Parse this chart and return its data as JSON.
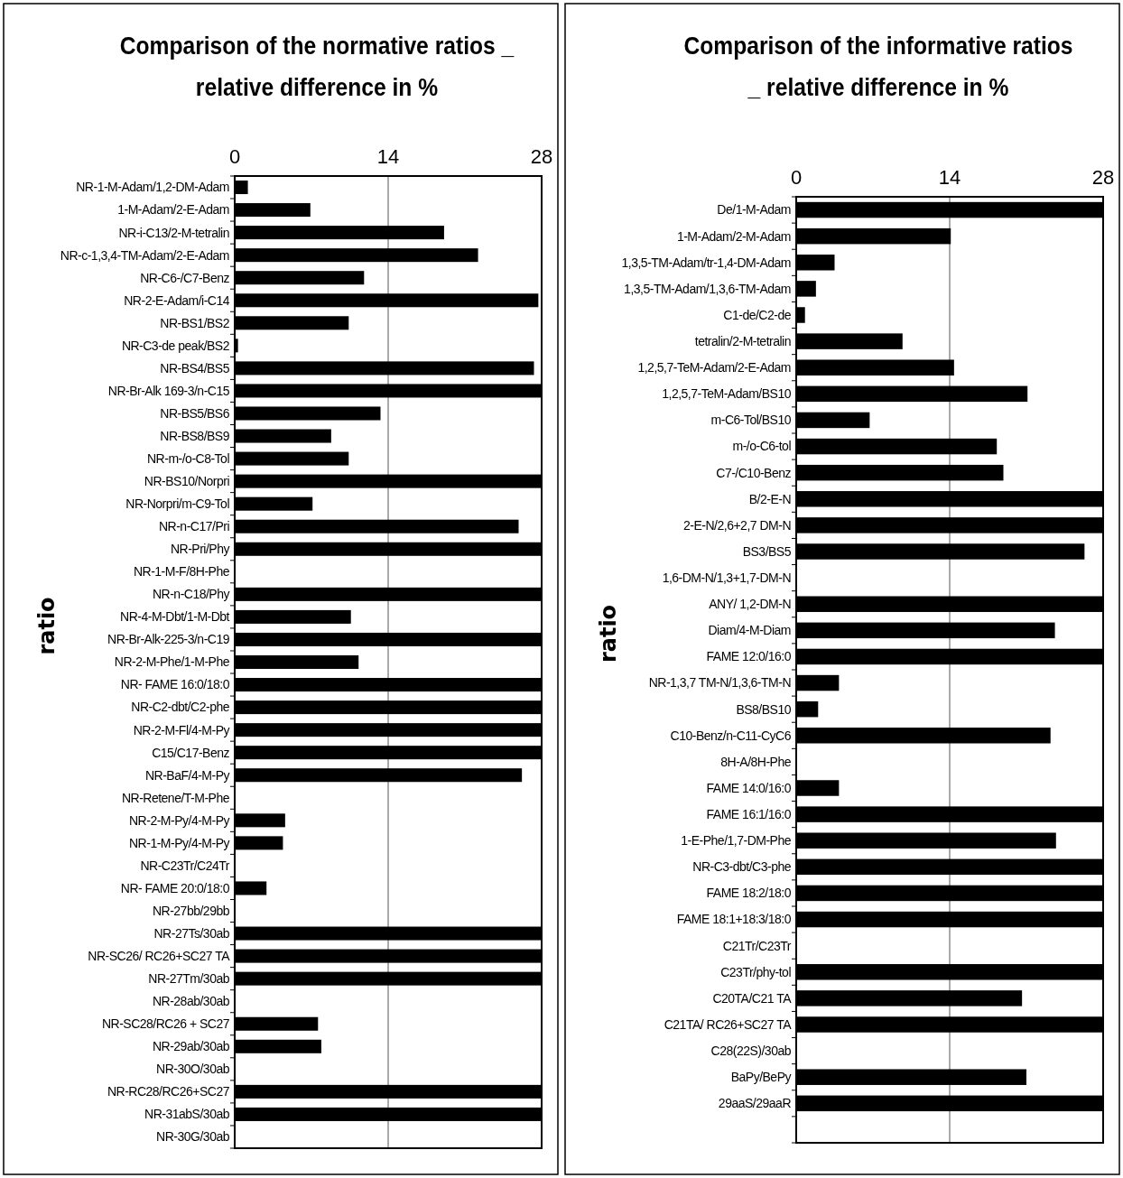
{
  "chart_data": [
    {
      "type": "bar",
      "orientation": "horizontal",
      "title": "Comparison of the normative ratios _ relative difference in %",
      "ylabel": "ratio",
      "color": "#000000",
      "grid": "x",
      "xlim": [
        0,
        28
      ],
      "xticks": [
        0,
        14,
        28
      ],
      "categories": [
        "NR-1-M-Adam/1,2-DM-Adam",
        "1-M-Adam/2-E-Adam",
        "NR-i-C13/2-M-tetralin",
        "NR-c-1,3,4-TM-Adam/2-E-Adam",
        "NR-C6-/C7-Benz",
        "NR-2-E-Adam/i-C14",
        "NR-BS1/BS2",
        "NR-C3-de peak/BS2",
        "NR-BS4/BS5",
        "NR-Br-Alk 169-3/n-C15",
        "NR-BS5/BS6",
        "NR-BS8/BS9",
        "NR-m-/o-C8-Tol",
        "NR-BS10/Norpri",
        "NR-Norpri/m-C9-Tol",
        "NR-n-C17/Pri",
        "NR-Pri/Phy",
        "NR-1-M-F/8H-Phe",
        "NR-n-C18/Phy",
        "NR-4-M-Dbt/1-M-Dbt",
        "NR-Br-Alk-225-3/n-C19",
        "NR-2-M-Phe/1-M-Phe",
        "NR- FAME 16:0/18:0",
        "NR-C2-dbt/C2-phe",
        "NR-2-M-Fl/4-M-Py",
        "C15/C17-Benz",
        "NR-BaF/4-M-Py",
        "NR-Retene/T-M-Phe",
        "NR-2-M-Py/4-M-Py",
        "NR-1-M-Py/4-M-Py",
        "NR-C23Tr/C24Tr",
        "NR- FAME 20:0/18:0",
        "NR-27bb/29bb",
        "NR-27Ts/30ab",
        "NR-SC26/ RC26+SC27 TA",
        "NR-27Tm/30ab",
        "NR-28ab/30ab",
        "NR-SC28/RC26 + SC27",
        "NR-29ab/30ab",
        "NR-30O/30ab",
        "NR-RC28/RC26+SC27",
        "NR-31abS/30ab",
        "NR-30G/30ab"
      ],
      "values": [
        1.2,
        6.9,
        19.1,
        22.2,
        11.8,
        27.7,
        10.4,
        0.3,
        27.3,
        28,
        13.3,
        8.8,
        10.4,
        28,
        7.1,
        25.9,
        28,
        0,
        28,
        10.6,
        28,
        11.3,
        28,
        28,
        28,
        28,
        26.2,
        0,
        4.6,
        4.4,
        0,
        2.9,
        0,
        28,
        28,
        28,
        0,
        7.6,
        7.9,
        0,
        28,
        28,
        0
      ]
    },
    {
      "type": "bar",
      "orientation": "horizontal",
      "title": "Comparison of the informative ratios _ relative difference in %",
      "ylabel": "ratio",
      "color": "#000000",
      "grid": "x",
      "xlim": [
        0,
        28
      ],
      "xticks": [
        0,
        14,
        28
      ],
      "categories": [
        "De/1-M-Adam",
        "1-M-Adam/2-M-Adam",
        "1,3,5-TM-Adam/tr-1,4-DM-Adam",
        "1,3,5-TM-Adam/1,3,6-TM-Adam",
        "C1-de/C2-de",
        "tetralin/2-M-tetralin",
        "1,2,5,7-TeM-Adam/2-E-Adam",
        "1,2,5,7-TeM-Adam/BS10",
        "m-C6-Tol/BS10",
        "m-/o-C6-tol",
        "C7-/C10-Benz",
        "B/2-E-N",
        "2-E-N/2,6+2,7 DM-N",
        "BS3/BS5",
        "1,6-DM-N/1,3+1,7-DM-N",
        "ANY/ 1,2-DM-N",
        "Diam/4-M-Diam",
        "FAME 12:0/16:0",
        "NR-1,3,7 TM-N/1,3,6-TM-N",
        "BS8/BS10",
        "C10-Benz/n-C11-CyC6",
        "8H-A/8H-Phe",
        "FAME 14:0/16:0",
        "FAME 16:1/16:0",
        "1-E-Phe/1,7-DM-Phe",
        "NR-C3-dbt/C3-phe",
        "FAME 18:2/18:0",
        "FAME 18:1+18:3/18:0",
        "C21Tr/C23Tr",
        "C23Tr/phy-tol",
        "C20TA/C21 TA",
        "C21TA/ RC26+SC27 TA",
        "C28(22S)/30ab",
        "BaPy/BePy",
        "29aaS/29aaR",
        null
      ],
      "values": [
        28,
        14.1,
        3.5,
        1.8,
        0.8,
        9.7,
        14.4,
        21.1,
        6.7,
        18.3,
        18.9,
        28,
        28,
        26.3,
        0,
        28,
        23.6,
        28,
        3.9,
        2.0,
        23.2,
        0,
        3.9,
        28,
        23.7,
        28,
        28,
        28,
        0,
        28,
        20.6,
        28,
        0,
        21.0,
        28,
        null
      ]
    }
  ]
}
